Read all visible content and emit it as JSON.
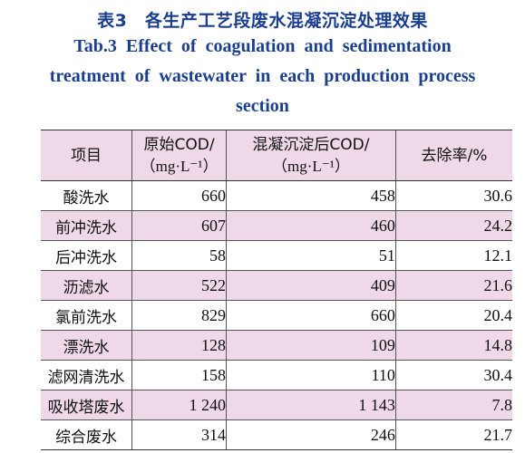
{
  "caption": {
    "cn": "表3　各生产工艺段废水混凝沉淀处理效果",
    "en_line1": "Tab.3  Effect of coagulation and sedimentation",
    "en_line2": "treatment of wastewater in each production process",
    "en_line3": "section"
  },
  "table": {
    "headers": {
      "item": "项目",
      "orig_l1": "原始COD/",
      "orig_l2": "（mg·L⁻¹）",
      "after_l1": "混凝沉淀后COD/",
      "after_l2": "（mg·L⁻¹）",
      "rate": "去除率/%"
    },
    "rows": [
      {
        "item": "酸洗水",
        "orig": "660",
        "after": "458",
        "rate": "30.6"
      },
      {
        "item": "前冲洗水",
        "orig": "607",
        "after": "460",
        "rate": "24.2"
      },
      {
        "item": "后冲洗水",
        "orig": "58",
        "after": "51",
        "rate": "12.1"
      },
      {
        "item": "沥滤水",
        "orig": "522",
        "after": "409",
        "rate": "21.6"
      },
      {
        "item": "氯前洗水",
        "orig": "829",
        "after": "660",
        "rate": "20.4"
      },
      {
        "item": "漂洗水",
        "orig": "128",
        "after": "109",
        "rate": "14.8"
      },
      {
        "item": "滤网清洗水",
        "orig": "158",
        "after": "110",
        "rate": "30.4"
      },
      {
        "item": "吸收塔废水",
        "orig": "1 240",
        "after": "1 143",
        "rate": "7.8"
      },
      {
        "item": "综合废水",
        "orig": "314",
        "after": "246",
        "rate": "21.7"
      }
    ]
  },
  "colors": {
    "caption": "#1b3f8e",
    "band": "#efd8e8"
  }
}
